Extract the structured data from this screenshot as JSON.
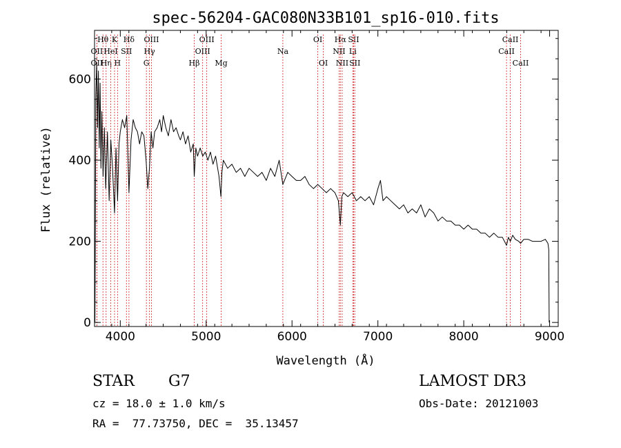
{
  "chart_data": {
    "type": "line",
    "title": "spec-56204-GAC080N33B101_sp16-010.fits",
    "xlabel": "Wavelength (Å)",
    "ylabel": "Flux (relative)",
    "xlim": [
      3700,
      9100
    ],
    "ylim": [
      -10,
      720
    ],
    "x_ticks": [
      4000,
      5000,
      6000,
      7000,
      8000,
      9000
    ],
    "x_tick_labels": [
      "4000",
      "5000",
      "6000",
      "7000",
      "8000",
      "9000"
    ],
    "y_ticks": [
      0,
      200,
      400,
      600
    ],
    "y_tick_labels": [
      "0",
      "200",
      "400",
      "600"
    ],
    "series": [
      {
        "name": "spectrum",
        "x": [
          3705,
          3715,
          3725,
          3735,
          3745,
          3755,
          3765,
          3775,
          3785,
          3800,
          3815,
          3830,
          3850,
          3870,
          3890,
          3910,
          3933,
          3950,
          3968,
          3985,
          4000,
          4025,
          4050,
          4075,
          4101,
          4125,
          4150,
          4175,
          4200,
          4225,
          4250,
          4275,
          4300,
          4320,
          4340,
          4360,
          4380,
          4400,
          4430,
          4460,
          4480,
          4500,
          4530,
          4560,
          4590,
          4620,
          4650,
          4680,
          4700,
          4730,
          4760,
          4790,
          4820,
          4850,
          4861,
          4880,
          4900,
          4930,
          4960,
          4990,
          5020,
          5050,
          5080,
          5110,
          5150,
          5172,
          5183,
          5200,
          5250,
          5300,
          5350,
          5400,
          5450,
          5500,
          5550,
          5600,
          5650,
          5700,
          5750,
          5800,
          5850,
          5893,
          5950,
          6000,
          6050,
          6100,
          6150,
          6200,
          6250,
          6300,
          6350,
          6400,
          6450,
          6500,
          6540,
          6563,
          6580,
          6600,
          6650,
          6700,
          6750,
          6800,
          6850,
          6900,
          6950,
          7000,
          7030,
          7060,
          7100,
          7150,
          7200,
          7250,
          7300,
          7350,
          7400,
          7450,
          7500,
          7550,
          7600,
          7650,
          7700,
          7750,
          7800,
          7850,
          7900,
          7950,
          8000,
          8050,
          8100,
          8150,
          8200,
          8250,
          8300,
          8350,
          8400,
          8450,
          8498,
          8520,
          8542,
          8570,
          8600,
          8640,
          8662,
          8700,
          8750,
          8800,
          8850,
          8900,
          8950,
          8980,
          8990,
          8995
        ],
        "y": [
          0,
          560,
          640,
          480,
          620,
          430,
          590,
          380,
          520,
          360,
          480,
          330,
          470,
          300,
          450,
          380,
          270,
          430,
          300,
          440,
          470,
          500,
          480,
          510,
          320,
          450,
          500,
          480,
          470,
          440,
          470,
          460,
          400,
          330,
          380,
          470,
          430,
          470,
          480,
          500,
          470,
          510,
          480,
          460,
          500,
          470,
          480,
          460,
          450,
          470,
          440,
          460,
          420,
          440,
          360,
          430,
          410,
          430,
          410,
          420,
          400,
          420,
          390,
          410,
          360,
          310,
          370,
          400,
          380,
          390,
          370,
          380,
          360,
          380,
          370,
          360,
          370,
          350,
          380,
          360,
          400,
          340,
          370,
          360,
          350,
          350,
          360,
          340,
          330,
          340,
          330,
          320,
          330,
          320,
          300,
          240,
          310,
          320,
          310,
          320,
          300,
          310,
          300,
          310,
          290,
          330,
          350,
          300,
          310,
          300,
          290,
          280,
          290,
          270,
          280,
          270,
          290,
          260,
          280,
          270,
          250,
          260,
          250,
          250,
          240,
          240,
          230,
          240,
          230,
          230,
          220,
          220,
          210,
          220,
          210,
          210,
          190,
          210,
          200,
          215,
          205,
          200,
          195,
          205,
          205,
          200,
          200,
          200,
          205,
          195,
          180,
          0
        ]
      }
    ],
    "line_markers": [
      {
        "label": "OII",
        "wavelength": 3727,
        "row": 2
      },
      {
        "label": "OII",
        "wavelength": 3727,
        "row": 3
      },
      {
        "label": "Hθ",
        "wavelength": 3798,
        "row": 1
      },
      {
        "label": "Hη",
        "wavelength": 3835,
        "row": 3
      },
      {
        "label": "HeI",
        "wavelength": 3889,
        "row": 2
      },
      {
        "label": "K",
        "wavelength": 3933,
        "row": 1
      },
      {
        "label": "H",
        "wavelength": 3968,
        "row": 3
      },
      {
        "label": "SII",
        "wavelength": 4072,
        "row": 2
      },
      {
        "label": "Hδ",
        "wavelength": 4101,
        "row": 1
      },
      {
        "label": "OIII",
        "wavelength": 4363,
        "row": 1
      },
      {
        "label": "Hγ",
        "wavelength": 4340,
        "row": 2
      },
      {
        "label": "G",
        "wavelength": 4304,
        "row": 3
      },
      {
        "label": "Hβ",
        "wavelength": 4861,
        "row": 3
      },
      {
        "label": "OIII",
        "wavelength": 5007,
        "row": 1
      },
      {
        "label": "OIII",
        "wavelength": 4959,
        "row": 2
      },
      {
        "label": "Mg",
        "wavelength": 5175,
        "row": 3
      },
      {
        "label": "Na",
        "wavelength": 5893,
        "row": 2
      },
      {
        "label": "OI",
        "wavelength": 6300,
        "row": 1
      },
      {
        "label": "OI",
        "wavelength": 6364,
        "row": 3
      },
      {
        "label": "Hα",
        "wavelength": 6563,
        "row": 1
      },
      {
        "label": "NII",
        "wavelength": 6548,
        "row": 2
      },
      {
        "label": "NII",
        "wavelength": 6584,
        "row": 3
      },
      {
        "label": "SII",
        "wavelength": 6717,
        "row": 1
      },
      {
        "label": "Li",
        "wavelength": 6708,
        "row": 2
      },
      {
        "label": "SII",
        "wavelength": 6731,
        "row": 3
      },
      {
        "label": "CaII",
        "wavelength": 8542,
        "row": 1
      },
      {
        "label": "CaII",
        "wavelength": 8498,
        "row": 2
      },
      {
        "label": "CaII",
        "wavelength": 8662,
        "row": 3
      }
    ]
  },
  "info": {
    "class_label": "STAR",
    "subclass_label": "G7",
    "survey": "LAMOST DR3",
    "redshift_line": "cz = 18.0 ± 1.0 km/s",
    "obs_date_line": "Obs-Date: 20121003",
    "coords_line": "RA =  77.73750, DEC =  35.13457"
  },
  "colors": {
    "foreground": "#000000",
    "marker_line": "#cc2222",
    "background": "#ffffff"
  }
}
